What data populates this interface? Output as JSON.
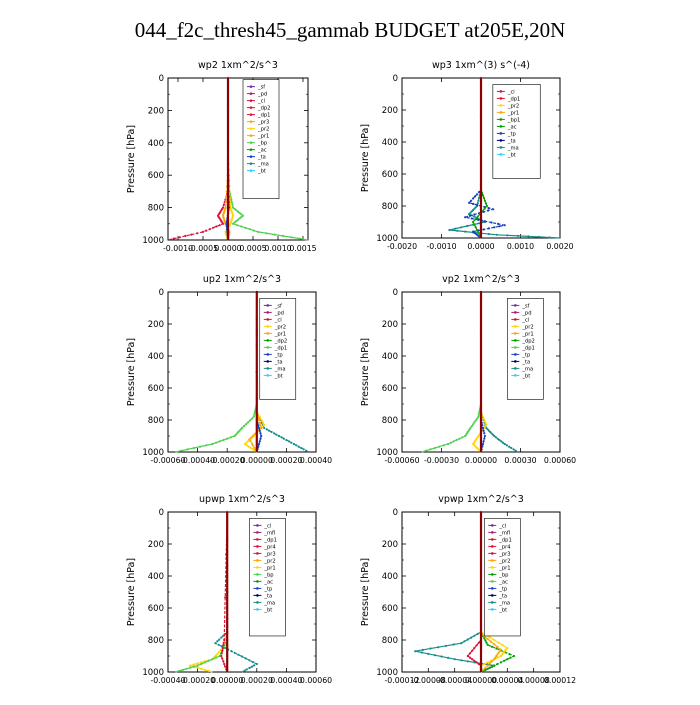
{
  "figure": {
    "title": "044_f2c_thresh45_gammab  BUDGET at205E,20N"
  },
  "colors": {
    "purple": "#7030a0",
    "magenta": "#a0207a",
    "red": "#e0103a",
    "yellow": "#ffd600",
    "orange": "#ffa500",
    "lightgreen": "#50d050",
    "green": "#00a000",
    "blue": "#1a3fbf",
    "darkblue": "#00007a",
    "teal": "#178c8c",
    "cyan": "#33ccff",
    "maroon": "#800000"
  },
  "chart_data": [
    {
      "type": "line",
      "title": "wp2   1xm^2/s^3",
      "ylabel": "Pressure  [hPa]",
      "xlim": [
        -0.0012,
        0.0016
      ],
      "ylim": [
        1000,
        0
      ],
      "xticks": [
        "-0.0010",
        "-0.0005",
        "0.0000",
        "0.0005",
        "0.0010",
        "0.0015"
      ],
      "xtick_values": [
        -0.001,
        -0.0005,
        0,
        0.0005,
        0.001,
        0.0015
      ],
      "yticks": [
        0,
        200,
        400,
        600,
        800,
        1000
      ],
      "legend": [
        "_sf",
        "_pd",
        "_cl",
        "_dp2",
        "_dp1",
        "_pr3",
        "_pr2",
        "_pr1",
        "_bp",
        "_ac",
        "_ta",
        "_ma",
        "_bt"
      ],
      "legend_colors": [
        "#7030a0",
        "#a0207a",
        "#e0103a",
        "#e0103a",
        "#e0103a",
        "#ffa500",
        "#ffd600",
        "#ffa500",
        "#50d050",
        "#00a000",
        "#1a3fbf",
        "#178c8c",
        "#33ccff"
      ],
      "legend_box": {
        "x": 0.0003,
        "y": 10,
        "w": 0.0007,
        "h": 620
      },
      "series": [
        {
          "color": "#50d050",
          "y": [
            0,
            500,
            700,
            800,
            850,
            900,
            950,
            1000
          ],
          "values": [
            0,
            0,
            3e-05,
            0.0001,
            0.0003,
            0.0001,
            0.0006,
            0.0016
          ]
        },
        {
          "color": "#e0103a",
          "y": [
            0,
            500,
            700,
            800,
            850,
            900,
            950,
            1000
          ],
          "values": [
            0,
            0,
            0,
            -0.0001,
            -0.0002,
            -0.0001,
            -0.0005,
            -0.0012
          ]
        },
        {
          "color": "#ffd600",
          "y": [
            0,
            600,
            800,
            850,
            900,
            950,
            1000
          ],
          "values": [
            0,
            0,
            5e-05,
            0.0001,
            5e-05,
            -5e-05,
            0
          ]
        },
        {
          "color": "#ffa500",
          "y": [
            0,
            600,
            800,
            850,
            900,
            950,
            1000
          ],
          "values": [
            0,
            0,
            -5e-05,
            -0.0001,
            -5e-05,
            3e-05,
            0
          ]
        },
        {
          "color": "#1a3fbf",
          "y": [
            0,
            600,
            800,
            900,
            1000
          ],
          "values": [
            0,
            0,
            2e-05,
            -3e-05,
            0
          ]
        },
        {
          "color": "#7030a0",
          "y": [
            0,
            500,
            1000
          ],
          "values": [
            0,
            0,
            0
          ]
        }
      ]
    },
    {
      "type": "line",
      "title": "wp3   1xm^(3) s^(-4)",
      "ylabel": "Pressure  [hPa]",
      "xlim": [
        -0.002,
        0.002
      ],
      "ylim": [
        1000,
        0
      ],
      "xticks": [
        "-0.0020",
        "-0.0010",
        "0.0000",
        "0.0010",
        "0.0020"
      ],
      "xtick_values": [
        -0.002,
        -0.001,
        0,
        0.001,
        0.002
      ],
      "yticks": [
        0,
        200,
        400,
        600,
        800,
        1000
      ],
      "legend": [
        "_cl",
        "_dp1",
        "_pr2",
        "_pr1",
        "_bp1",
        "_ac",
        "_tp",
        "_ta",
        "_ma",
        "_bt"
      ],
      "legend_colors": [
        "#e0103a",
        "#e0103a",
        "#ffd600",
        "#ffa500",
        "#00a000",
        "#00a000",
        "#1a3fbf",
        "#00007a",
        "#178c8c",
        "#33ccff"
      ],
      "legend_box": {
        "x": 0.0003,
        "y": 40,
        "w": 0.0012,
        "h": 500
      },
      "series": [
        {
          "color": "#178c8c",
          "y": [
            0,
            700,
            800,
            850,
            900,
            950,
            980,
            1000
          ],
          "values": [
            0,
            0,
            -0.0001,
            -0.0003,
            0.0001,
            -0.0008,
            0.0004,
            0.002
          ]
        },
        {
          "color": "#1a3fbf",
          "y": [
            0,
            700,
            780,
            820,
            870,
            920,
            960,
            1000
          ],
          "values": [
            0,
            0,
            -0.0003,
            0.0003,
            -0.0004,
            0.0006,
            -0.0002,
            0
          ]
        },
        {
          "color": "#00a000",
          "y": [
            0,
            700,
            800,
            900,
            1000
          ],
          "values": [
            0,
            0,
            0.00015,
            -0.0002,
            0
          ]
        },
        {
          "color": "#e0103a",
          "y": [
            0,
            500,
            1000
          ],
          "values": [
            0,
            0,
            0
          ]
        }
      ]
    },
    {
      "type": "line",
      "title": "up2   1xm^2/s^3",
      "ylabel": "Pressure  [hPa]",
      "xlim": [
        -0.0006,
        0.0004
      ],
      "ylim": [
        1000,
        0
      ],
      "xticks": [
        "-0.00060",
        "-0.00040",
        "-0.00020",
        "0.00000",
        "0.00020",
        "0.00040"
      ],
      "xtick_values": [
        -0.0006,
        -0.0004,
        -0.0002,
        0,
        0.0002,
        0.0004
      ],
      "yticks": [
        0,
        200,
        400,
        600,
        800,
        1000
      ],
      "legend": [
        "_sf",
        "_pd",
        "_cl",
        "_pr2",
        "_pr1",
        "_dp2",
        "_dp1",
        "_tp",
        "_ta",
        "_ma",
        "_bt"
      ],
      "legend_colors": [
        "#7030a0",
        "#a0207a",
        "#e0103a",
        "#ffd600",
        "#ffa500",
        "#00a000",
        "#50d050",
        "#1a3fbf",
        "#00007a",
        "#178c8c",
        "#33ccff"
      ],
      "legend_box": {
        "x": 2e-05,
        "y": 40,
        "w": 0.00013,
        "h": 500
      },
      "series": [
        {
          "color": "#50d050",
          "y": [
            0,
            700,
            780,
            850,
            900,
            950,
            1000
          ],
          "values": [
            0,
            0,
            -2e-05,
            -0.0001,
            -0.00015,
            -0.0003,
            -0.00055
          ]
        },
        {
          "color": "#178c8c",
          "y": [
            0,
            750,
            850,
            900,
            950,
            1000
          ],
          "values": [
            0,
            0,
            5e-05,
            0.00015,
            0.00025,
            0.00035
          ]
        },
        {
          "color": "#ffd600",
          "y": [
            0,
            750,
            830,
            900,
            950,
            1000
          ],
          "values": [
            0,
            0,
            5e-05,
            -2e-05,
            -8e-05,
            0
          ]
        },
        {
          "color": "#ffa500",
          "y": [
            0,
            750,
            850,
            920,
            1000
          ],
          "values": [
            0,
            0,
            3e-05,
            -5e-05,
            0
          ]
        },
        {
          "color": "#1a3fbf",
          "y": [
            0,
            800,
            900,
            1000
          ],
          "values": [
            0,
            0,
            3e-05,
            0
          ]
        },
        {
          "color": "#800000",
          "y": [
            0,
            500,
            1000
          ],
          "values": [
            0,
            0,
            0
          ]
        }
      ]
    },
    {
      "type": "line",
      "title": "vp2   1xm^2/s^3",
      "ylabel": "Pressure  [hPa]",
      "xlim": [
        -0.0006,
        0.0006
      ],
      "ylim": [
        1000,
        0
      ],
      "xticks": [
        "-0.00060",
        "-0.00030",
        "0.00000",
        "0.00030",
        "0.00060"
      ],
      "xtick_values": [
        -0.0006,
        -0.0003,
        0,
        0.0003,
        0.0006
      ],
      "yticks": [
        0,
        200,
        400,
        600,
        800,
        1000
      ],
      "legend": [
        "_sf",
        "_pd",
        "_cl",
        "_pr2",
        "_pr1",
        "_dp2",
        "_dp1",
        "_tp",
        "_ta",
        "_ma",
        "_bt"
      ],
      "legend_colors": [
        "#7030a0",
        "#a0207a",
        "#e0103a",
        "#ffd600",
        "#ffa500",
        "#00a000",
        "#50d050",
        "#1a3fbf",
        "#00007a",
        "#178c8c",
        "#33ccff"
      ],
      "legend_box": {
        "x": 0.0002,
        "y": 40,
        "w": 0.00016,
        "h": 500
      },
      "series": [
        {
          "color": "#50d050",
          "y": [
            0,
            700,
            780,
            850,
            900,
            950,
            1000
          ],
          "values": [
            0,
            0,
            -2e-05,
            -8e-05,
            -0.00012,
            -0.00025,
            -0.00045
          ]
        },
        {
          "color": "#178c8c",
          "y": [
            0,
            750,
            850,
            900,
            950,
            1000
          ],
          "values": [
            0,
            0,
            4e-05,
            0.0001,
            0.00018,
            0.00028
          ]
        },
        {
          "color": "#ffd600",
          "y": [
            0,
            750,
            830,
            900,
            950,
            1000
          ],
          "values": [
            0,
            0,
            4e-05,
            -2e-05,
            -6e-05,
            0
          ]
        },
        {
          "color": "#1a3fbf",
          "y": [
            0,
            800,
            900,
            1000
          ],
          "values": [
            0,
            0,
            3e-05,
            0
          ]
        },
        {
          "color": "#800000",
          "y": [
            0,
            500,
            1000
          ],
          "values": [
            0,
            0,
            0
          ]
        }
      ]
    },
    {
      "type": "line",
      "title": "upwp   1xm^2/s^3",
      "ylabel": "Pressure  [hPa]",
      "xlim": [
        -0.0004,
        0.0006
      ],
      "ylim": [
        1000,
        0
      ],
      "xticks": [
        "-0.00040",
        "-0.00020",
        "0.00000",
        "0.00020",
        "0.00040",
        "0.00060"
      ],
      "xtick_values": [
        -0.0004,
        -0.0002,
        0,
        0.0002,
        0.0004,
        0.0006
      ],
      "yticks": [
        0,
        200,
        400,
        600,
        800,
        1000
      ],
      "legend": [
        "_cl",
        "_mfl",
        "_dp1",
        "_pr4",
        "_pr3",
        "_pr2",
        "_pr1",
        "_bp",
        "_ac",
        "_tp",
        "_ta",
        "_ma",
        "_bt"
      ],
      "legend_colors": [
        "#7030a0",
        "#a0207a",
        "#e0103a",
        "#e0103a",
        "#e0103a",
        "#ffa500",
        "#ffd600",
        "#50d050",
        "#00a000",
        "#1a3fbf",
        "#00007a",
        "#178c8c",
        "#33ccff"
      ],
      "legend_box": {
        "x": 0.00015,
        "y": 40,
        "w": 0.00016,
        "h": 580
      },
      "series": [
        {
          "color": "#ffd600",
          "y": [
            0,
            750,
            850,
            920,
            960,
            1000
          ],
          "values": [
            0,
            0,
            -3e-05,
            -0.0001,
            -0.00025,
            -0.0001
          ]
        },
        {
          "color": "#178c8c",
          "y": [
            0,
            750,
            820,
            880,
            950,
            1000
          ],
          "values": [
            0,
            0,
            -8e-05,
            5e-05,
            0.0002,
            0.0001
          ]
        },
        {
          "color": "#50d050",
          "y": [
            0,
            800,
            900,
            960,
            1000
          ],
          "values": [
            0,
            0,
            -5e-05,
            -0.0002,
            -0.00035
          ]
        },
        {
          "color": "#e0103a",
          "y": [
            0,
            800,
            900,
            1000
          ],
          "values": [
            0,
            -2e-05,
            -4e-05,
            0
          ]
        },
        {
          "color": "#7030a0",
          "y": [
            0,
            500,
            1000
          ],
          "values": [
            0,
            0,
            0
          ]
        }
      ]
    },
    {
      "type": "line",
      "title": "vpwp   1xm^2/s^3",
      "ylabel": "Pressure  [hPa]",
      "xlim": [
        -0.00012,
        0.00012
      ],
      "ylim": [
        1000,
        0
      ],
      "xticks": [
        "-0.00012",
        "-0.00008",
        "-0.00004",
        "0.00000",
        "0.00004",
        "0.00008",
        "0.00012"
      ],
      "xtick_values": [
        -0.00012,
        -8e-05,
        -4e-05,
        0,
        4e-05,
        8e-05,
        0.00012
      ],
      "yticks": [
        0,
        200,
        400,
        600,
        800,
        1000
      ],
      "legend": [
        "_cl",
        "_mfl",
        "_dp1",
        "_pr4",
        "_pr3",
        "_pr2",
        "_pr1",
        "_bp",
        "_ac",
        "_tp",
        "_ta",
        "_ma",
        "_bt"
      ],
      "legend_colors": [
        "#7030a0",
        "#a0207a",
        "#e0103a",
        "#e0103a",
        "#e0103a",
        "#ffa500",
        "#ffd600",
        "#00a000",
        "#50d050",
        "#1a3fbf",
        "#00007a",
        "#178c8c",
        "#33ccff"
      ],
      "legend_box": {
        "x": 5e-06,
        "y": 40,
        "w": 4e-05,
        "h": 580
      },
      "series": [
        {
          "color": "#178c8c",
          "y": [
            0,
            750,
            820,
            870,
            920,
            960,
            1000
          ],
          "values": [
            0,
            0,
            -3e-05,
            -0.0001,
            -4e-05,
            2e-05,
            0
          ]
        },
        {
          "color": "#00a000",
          "y": [
            0,
            750,
            830,
            900,
            960,
            1000
          ],
          "values": [
            0,
            0,
            1e-05,
            5e-05,
            2e-05,
            0
          ]
        },
        {
          "color": "#ffd600",
          "y": [
            0,
            750,
            850,
            900,
            960,
            1000
          ],
          "values": [
            0,
            0,
            4e-05,
            3e-05,
            0,
            0
          ]
        },
        {
          "color": "#ffa500",
          "y": [
            0,
            760,
            860,
            920,
            1000
          ],
          "values": [
            0,
            0,
            3e-05,
            2e-05,
            0
          ]
        },
        {
          "color": "#e0103a",
          "y": [
            0,
            800,
            900,
            960,
            1000
          ],
          "values": [
            0,
            0,
            -2e-05,
            0,
            0
          ]
        },
        {
          "color": "#7030a0",
          "y": [
            0,
            500,
            1000
          ],
          "values": [
            0,
            0,
            0
          ]
        }
      ]
    }
  ]
}
